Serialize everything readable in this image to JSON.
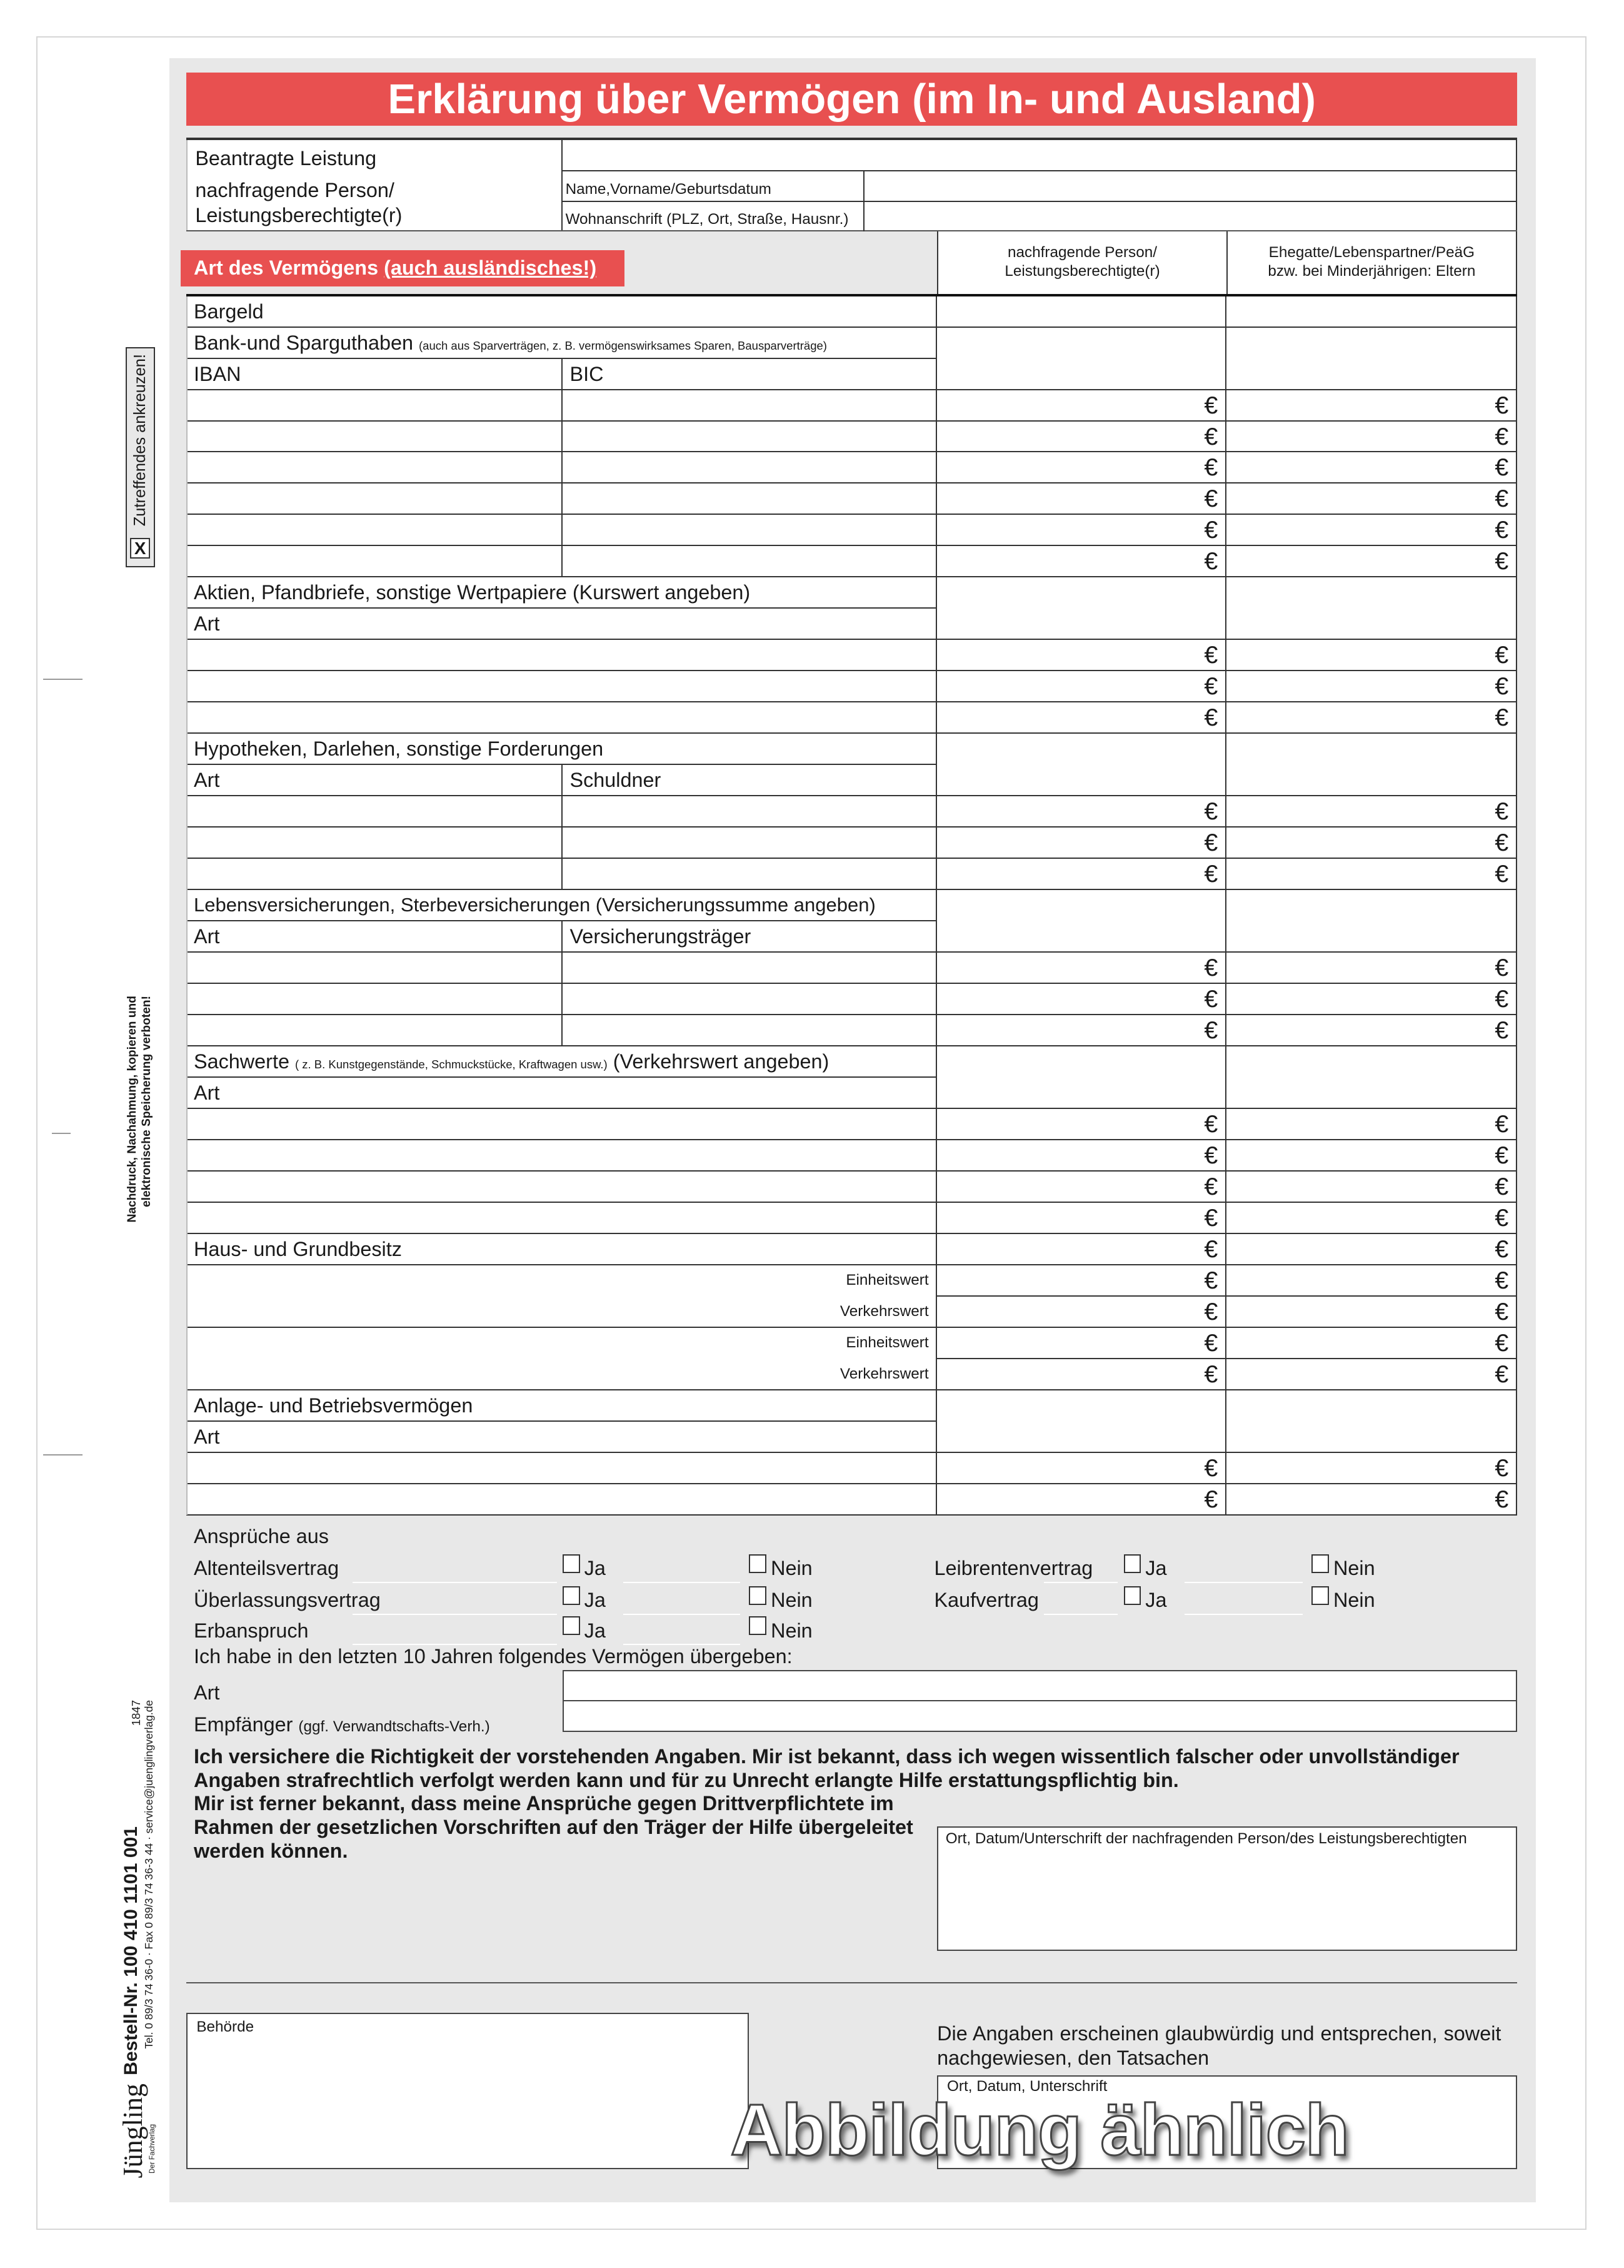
{
  "title": "Erklärung über Vermögen (im In- und Ausland)",
  "header": {
    "beantragte_leistung": "Beantragte Leistung",
    "person_label_1": "nachfragende Person/",
    "person_label_2": "Leistungsberechtigte(r)",
    "name_label": "Name,Vorname/Geburtsdatum",
    "address_label": "Wohnanschrift (PLZ, Ort, Straße, Hausnr.)"
  },
  "art_label": "Art des Vermögens",
  "art_label_emph": "(auch ausländisches!)",
  "columns": {
    "col1_line1": "nachfragende Person/",
    "col1_line2": "Leistungsberechtigte(r)",
    "col2_line1": "Ehegatte/Lebenspartner/PeäG",
    "col2_line2": "bzw. bei Minderjährigen: Eltern"
  },
  "currency": "€",
  "rows": [
    {
      "type": "head",
      "label": "Bargeld"
    },
    {
      "type": "head",
      "label": "Bank-und Sparguthaben",
      "note": "(auch aus Sparverträgen, z. B. vermögenswirksames Sparen, Bausparverträge)"
    },
    {
      "type": "split",
      "label": "IBAN",
      "label2": "BIC"
    },
    {
      "type": "euro",
      "split": true
    },
    {
      "type": "euro",
      "split": true
    },
    {
      "type": "euro",
      "split": true
    },
    {
      "type": "euro",
      "split": true
    },
    {
      "type": "euro",
      "split": true
    },
    {
      "type": "euro",
      "split": true
    },
    {
      "type": "head",
      "label": "Aktien, Pfandbriefe, sonstige Wertpapiere (Kurswert angeben)"
    },
    {
      "type": "head",
      "label": "Art"
    },
    {
      "type": "euro"
    },
    {
      "type": "euro"
    },
    {
      "type": "euro"
    },
    {
      "type": "head",
      "label": "Hypotheken, Darlehen, sonstige Forderungen"
    },
    {
      "type": "split",
      "label": "Art",
      "label2": "Schuldner"
    },
    {
      "type": "euro",
      "split": true
    },
    {
      "type": "euro",
      "split": true
    },
    {
      "type": "euro",
      "split": true
    },
    {
      "type": "head",
      "label": "Lebensversicherungen, Sterbeversicherungen (Versicherungssumme angeben)"
    },
    {
      "type": "split",
      "label": "Art",
      "label2": "Versicherungsträger"
    },
    {
      "type": "euro",
      "split": true
    },
    {
      "type": "euro",
      "split": true
    },
    {
      "type": "euro",
      "split": true
    },
    {
      "type": "head",
      "label": "Sachwerte",
      "note": "( z. B. Kunstgegenstände, Schmuckstücke, Kraftwagen usw.)",
      "suffix": "(Verkehrswert angeben)"
    },
    {
      "type": "head",
      "label": "Art"
    },
    {
      "type": "euro"
    },
    {
      "type": "euro"
    },
    {
      "type": "euro"
    },
    {
      "type": "euro"
    },
    {
      "type": "euro",
      "label": "Haus- und Grundbesitz"
    },
    {
      "type": "euro",
      "rlabel": "Einheitswert",
      "open": true
    },
    {
      "type": "euro",
      "rlabel": "Verkehrswert"
    },
    {
      "type": "euro",
      "rlabel": "Einheitswert",
      "open": true
    },
    {
      "type": "euro",
      "rlabel": "Verkehrswert"
    },
    {
      "type": "head",
      "label": "Anlage- und Betriebsvermögen"
    },
    {
      "type": "head",
      "label": "Art"
    },
    {
      "type": "euro"
    },
    {
      "type": "euro"
    }
  ],
  "claims": {
    "title": "Ansprüche aus",
    "yes": "Ja",
    "no": "Nein",
    "items": [
      {
        "label": "Altenteilsvertrag"
      },
      {
        "label": "Überlassungsvertrag"
      },
      {
        "label": "Erbanspruch"
      },
      {
        "label": "Leibrentenvertrag"
      },
      {
        "label": "Kaufvertrag"
      }
    ]
  },
  "transfer": {
    "intro": "Ich habe in den letzten 10 Jahren folgendes Vermögen übergeben:",
    "art": "Art",
    "recipient": "Empfänger",
    "recipient_note": "(ggf. Verwandtschafts-Verh.)"
  },
  "declaration": {
    "p1": "Ich versichere die Richtigkeit der vorstehenden Angaben. Mir ist bekannt, dass ich wegen wissentlich falscher oder unvollständiger Angaben strafrechtlich verfolgt werden kann und für zu Unrecht erlangte Hilfe erstattungspflichtig bin.",
    "p2": "Mir ist ferner bekannt, dass meine Ansprüche gegen Drittverpflichtete im Rahmen der gesetzlichen Vorschriften auf den Träger der Hilfe übergeleitet werden können.",
    "signature_label": "Ort, Datum/Unterschrift der nachfragenden Person/des Leistungsberechtigten"
  },
  "authority": {
    "label": "Behörde",
    "statement": "Die Angaben erscheinen glaubwürdig und entsprechen, soweit nachgewiesen, den Tatsachen",
    "signature_label": "Ort, Datum, Unterschrift"
  },
  "watermark": "Abbildung ähnlich",
  "margin": {
    "check_hint": "Zutreffendes ankreuzen!",
    "check_mark": "X",
    "copyright_1": "Nachdruck, Nachahmung, kopieren und",
    "copyright_2": "elektronische Speicherung verboten!",
    "form_number": "1847",
    "order_number": "Bestell-Nr.  100 410 1101 001",
    "contact": "Tel. 0 89/3 74 36-0 · Fax 0 89/3 74 36-3 44 · service@juenglingverlag.de",
    "logo": "Jüngling",
    "logo_sub": "Der Fachverlag"
  }
}
